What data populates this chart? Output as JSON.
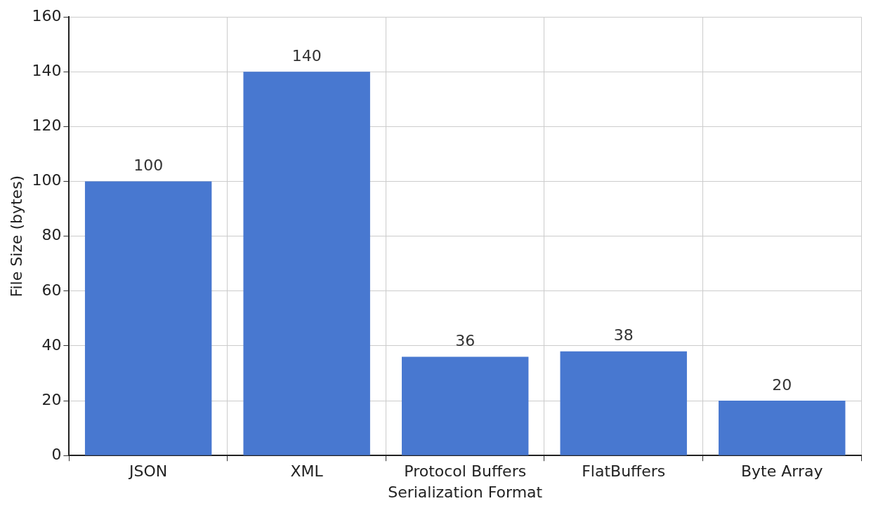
{
  "chart_data": {
    "type": "bar",
    "xlabel": "Serialization Format",
    "ylabel": "File Size (bytes)",
    "categories": [
      "JSON",
      "XML",
      "Protocol Buffers",
      "FlatBuffers",
      "Byte Array"
    ],
    "values": [
      100,
      140,
      36,
      38,
      20
    ],
    "color": "#4878d0",
    "ylim": [
      0,
      160
    ],
    "yticks": [
      0,
      20,
      40,
      60,
      80,
      100,
      120,
      140,
      160
    ],
    "grid": true,
    "data_labels": true
  }
}
